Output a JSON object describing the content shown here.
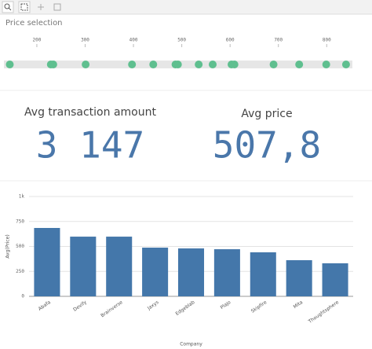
{
  "chart_data": [
    {
      "type": "scatter",
      "title": "Price selection",
      "x": [
        144,
        229,
        234,
        301,
        397,
        441,
        487,
        492,
        535,
        564,
        603,
        609,
        690,
        743,
        799,
        840
      ],
      "xlim": [
        140,
        845
      ],
      "xticks": [
        200,
        300,
        400,
        500,
        600,
        700,
        800
      ],
      "color": "#5fbf8f"
    },
    {
      "type": "bar",
      "ylabel": "Avg(Price)",
      "xlabel": "Company",
      "categories": [
        "Abafa",
        "Devify",
        "Brainverse",
        "Jaxys",
        "Edgeblab",
        "Plajo",
        "Skipfire",
        "Mita",
        "Thoughtsphere"
      ],
      "values": [
        685,
        598,
        598,
        488,
        480,
        472,
        441,
        362,
        331
      ],
      "color": "#4477aa",
      "ylim": [
        0,
        1000
      ],
      "yticks": [
        0,
        250,
        500,
        750,
        {
          "value": 1000,
          "label": "1k"
        }
      ],
      "grid": true
    }
  ],
  "kpis": [
    {
      "label": "Avg transaction amount",
      "value": "3 147"
    },
    {
      "label": "Avg price",
      "value": "507,8"
    }
  ]
}
